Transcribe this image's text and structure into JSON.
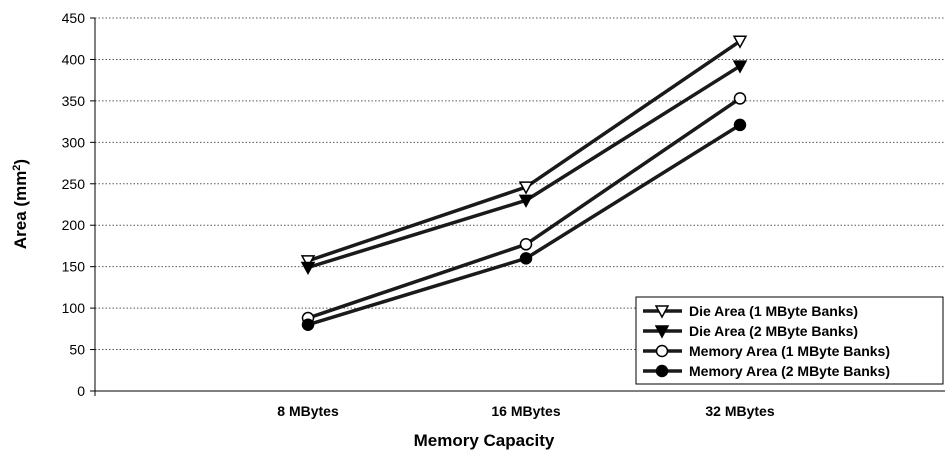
{
  "chart_data": {
    "type": "line",
    "categories": [
      "8 MBytes",
      "16 MBytes",
      "32 MBytes"
    ],
    "xlabel": "Memory Capacity",
    "ylabel": {
      "prefix": "Area (mm",
      "sup": "2",
      "suffix": ")"
    },
    "ylim": [
      0,
      450
    ],
    "yticks": [
      0,
      50,
      100,
      150,
      200,
      250,
      300,
      350,
      400,
      450
    ],
    "grid": "horizontal dotted",
    "legend_position": "bottom-right",
    "series": [
      {
        "name": "Die Area (1 MByte Banks)",
        "marker": "triangle-down-open",
        "values": [
          157,
          246,
          422
        ]
      },
      {
        "name": "Die Area (2 MByte Banks)",
        "marker": "triangle-down-filled",
        "values": [
          149,
          230,
          392
        ]
      },
      {
        "name": "Memory Area (1 MByte Banks)",
        "marker": "circle-open",
        "values": [
          88,
          177,
          353
        ]
      },
      {
        "name": "Memory Area (2 MByte Banks)",
        "marker": "circle-filled",
        "values": [
          80,
          160,
          321
        ]
      }
    ]
  }
}
